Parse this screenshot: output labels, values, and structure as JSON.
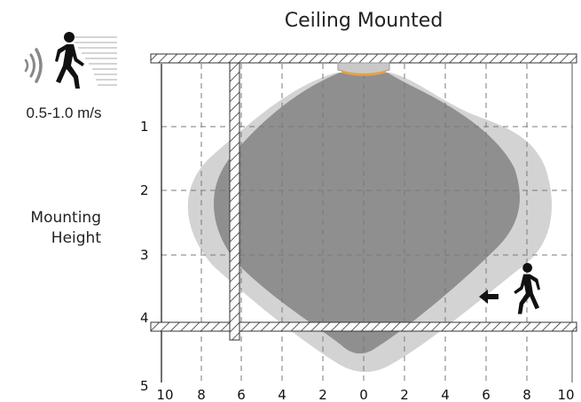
{
  "diagram": {
    "title": "Ceiling Mounted",
    "speed_label": "0.5-1.0 m/s",
    "mounting_height_label": [
      "Mounting",
      "Height"
    ],
    "icons": [
      "sensor-waves-icon",
      "walking-person-icon",
      "approaching-person-icon",
      "direction-arrow-icon"
    ],
    "y_axis": {
      "ticks": [
        "1",
        "2",
        "3",
        "4",
        "5"
      ]
    },
    "x_axis": {
      "ticks": [
        "10",
        "8",
        "6",
        "4",
        "2",
        "0",
        "2",
        "4",
        "6",
        "8",
        "10"
      ]
    },
    "colors": {
      "outer_zone": "#d3d3d3",
      "inner_zone": "#8f8f8f",
      "sensor": "#e8a23c",
      "grid": "#7a7a7a"
    }
  }
}
